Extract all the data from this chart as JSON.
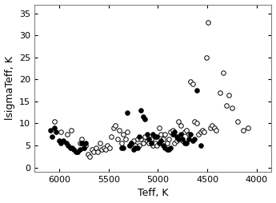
{
  "title": "",
  "xlabel": "Teff, K",
  "ylabel": "lsigmaTeff, K",
  "xlim": [
    6250,
    3850
  ],
  "ylim": [
    -1,
    37
  ],
  "yticks": [
    0,
    5,
    10,
    15,
    20,
    25,
    30,
    35
  ],
  "xticks": [
    6000,
    5500,
    5000,
    4500,
    4000
  ],
  "open_circles": [
    [
      6050,
      10.5
    ],
    [
      5980,
      8.0
    ],
    [
      5920,
      7.5
    ],
    [
      5880,
      8.5
    ],
    [
      5790,
      5.5
    ],
    [
      5770,
      6.5
    ],
    [
      5750,
      4.5
    ],
    [
      5730,
      5.0
    ],
    [
      5710,
      3.0
    ],
    [
      5690,
      2.5
    ],
    [
      5670,
      4.0
    ],
    [
      5650,
      3.5
    ],
    [
      5630,
      4.5
    ],
    [
      5610,
      3.5
    ],
    [
      5590,
      5.5
    ],
    [
      5570,
      4.0
    ],
    [
      5550,
      4.5
    ],
    [
      5530,
      4.0
    ],
    [
      5510,
      5.0
    ],
    [
      5490,
      4.5
    ],
    [
      5470,
      7.0
    ],
    [
      5450,
      9.0
    ],
    [
      5430,
      9.5
    ],
    [
      5410,
      6.5
    ],
    [
      5390,
      8.5
    ],
    [
      5370,
      5.5
    ],
    [
      5350,
      7.5
    ],
    [
      5330,
      6.5
    ],
    [
      5310,
      8.0
    ],
    [
      5290,
      5.0
    ],
    [
      5270,
      5.5
    ],
    [
      5250,
      6.0
    ],
    [
      5230,
      5.0
    ],
    [
      5210,
      6.5
    ],
    [
      5190,
      5.0
    ],
    [
      5170,
      6.5
    ],
    [
      5150,
      5.5
    ],
    [
      5130,
      7.0
    ],
    [
      5110,
      6.0
    ],
    [
      5090,
      5.5
    ],
    [
      5070,
      6.5
    ],
    [
      5050,
      5.0
    ],
    [
      5030,
      5.5
    ],
    [
      5010,
      5.0
    ],
    [
      4990,
      9.0
    ],
    [
      4970,
      7.5
    ],
    [
      4950,
      6.5
    ],
    [
      4930,
      7.5
    ],
    [
      4910,
      5.5
    ],
    [
      4890,
      6.5
    ],
    [
      4870,
      8.0
    ],
    [
      4850,
      8.5
    ],
    [
      4830,
      5.5
    ],
    [
      4810,
      6.0
    ],
    [
      4790,
      10.5
    ],
    [
      4770,
      9.5
    ],
    [
      4750,
      6.0
    ],
    [
      4730,
      8.0
    ],
    [
      4710,
      8.5
    ],
    [
      4690,
      7.5
    ],
    [
      4670,
      19.5
    ],
    [
      4650,
      19.0
    ],
    [
      4630,
      10.5
    ],
    [
      4610,
      10.0
    ],
    [
      4590,
      7.5
    ],
    [
      4570,
      8.0
    ],
    [
      4550,
      8.5
    ],
    [
      4530,
      8.0
    ],
    [
      4510,
      25.0
    ],
    [
      4490,
      33.0
    ],
    [
      4470,
      9.0
    ],
    [
      4450,
      9.5
    ],
    [
      4430,
      9.0
    ],
    [
      4410,
      8.5
    ],
    [
      4370,
      17.0
    ],
    [
      4340,
      21.5
    ],
    [
      4310,
      14.0
    ],
    [
      4280,
      16.5
    ],
    [
      4250,
      13.5
    ],
    [
      4190,
      10.5
    ],
    [
      4140,
      8.5
    ],
    [
      4090,
      9.0
    ]
  ],
  "filled_circles": [
    [
      6090,
      8.5
    ],
    [
      6070,
      7.0
    ],
    [
      6050,
      9.0
    ],
    [
      6030,
      8.0
    ],
    [
      6000,
      6.0
    ],
    [
      5980,
      5.5
    ],
    [
      5960,
      6.0
    ],
    [
      5930,
      5.5
    ],
    [
      5910,
      5.0
    ],
    [
      5890,
      4.5
    ],
    [
      5870,
      4.5
    ],
    [
      5850,
      4.0
    ],
    [
      5830,
      3.5
    ],
    [
      5810,
      3.5
    ],
    [
      5790,
      4.0
    ],
    [
      5770,
      5.5
    ],
    [
      5750,
      4.5
    ],
    [
      5730,
      5.5
    ],
    [
      5370,
      4.5
    ],
    [
      5350,
      4.5
    ],
    [
      5310,
      12.5
    ],
    [
      5290,
      5.0
    ],
    [
      5270,
      5.5
    ],
    [
      5250,
      4.0
    ],
    [
      5230,
      4.5
    ],
    [
      5210,
      4.5
    ],
    [
      5190,
      7.0
    ],
    [
      5170,
      13.0
    ],
    [
      5150,
      11.5
    ],
    [
      5130,
      11.0
    ],
    [
      5110,
      7.5
    ],
    [
      5090,
      6.5
    ],
    [
      5070,
      5.5
    ],
    [
      5050,
      7.5
    ],
    [
      5030,
      7.0
    ],
    [
      5010,
      7.0
    ],
    [
      4990,
      5.5
    ],
    [
      4970,
      6.0
    ],
    [
      4950,
      5.0
    ],
    [
      4930,
      4.5
    ],
    [
      4910,
      4.0
    ],
    [
      4890,
      4.0
    ],
    [
      4870,
      4.5
    ],
    [
      4850,
      7.5
    ],
    [
      4830,
      8.0
    ],
    [
      4810,
      7.0
    ],
    [
      4790,
      6.5
    ],
    [
      4770,
      7.5
    ],
    [
      4750,
      6.5
    ],
    [
      4730,
      5.5
    ],
    [
      4710,
      5.5
    ],
    [
      4690,
      6.5
    ],
    [
      4670,
      7.5
    ],
    [
      4650,
      6.0
    ],
    [
      4630,
      6.5
    ],
    [
      4610,
      17.5
    ],
    [
      4570,
      5.0
    ]
  ],
  "marker_size": 16,
  "open_color": "white",
  "filled_color": "black",
  "edge_color": "black",
  "linewidth": 0.7,
  "background_color": "#ffffff",
  "font_size": 9,
  "tick_labelsize": 8
}
